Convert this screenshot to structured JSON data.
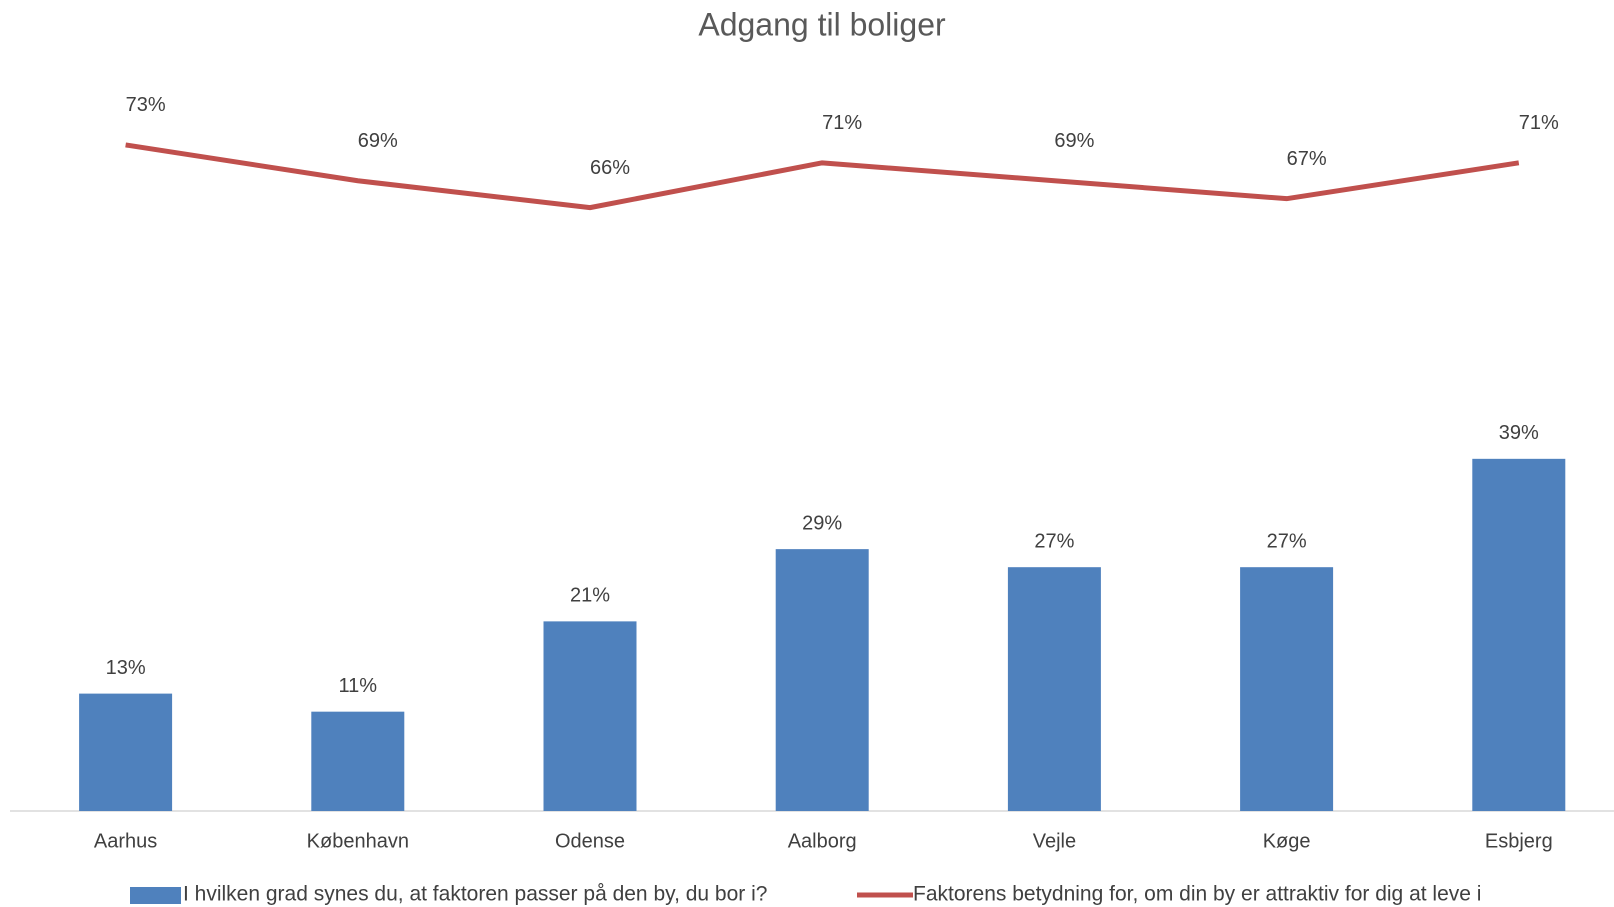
{
  "chart_data": {
    "type": "bar-line",
    "title": "Adgang til boliger",
    "categories": [
      "Aarhus",
      "København",
      "Odense",
      "Aalborg",
      "Vejle",
      "Køge",
      "Esbjerg"
    ],
    "series": [
      {
        "name": "I hvilken grad synes du, at faktoren passer på den by, du bor i?",
        "type": "bar",
        "color": "#4f81bd",
        "values": [
          13,
          11,
          21,
          29,
          27,
          27,
          39
        ],
        "value_labels": [
          "13%",
          "11%",
          "21%",
          "29%",
          "27%",
          "27%",
          "39%"
        ]
      },
      {
        "name": "Faktorens betydning for, om din by er attraktiv for dig at leve i",
        "type": "line",
        "color": "#c0504d",
        "values": [
          73,
          69,
          66,
          71,
          69,
          67,
          71
        ],
        "value_labels": [
          "73%",
          "69%",
          "66%",
          "71%",
          "69%",
          "67%",
          "71%"
        ]
      }
    ]
  }
}
